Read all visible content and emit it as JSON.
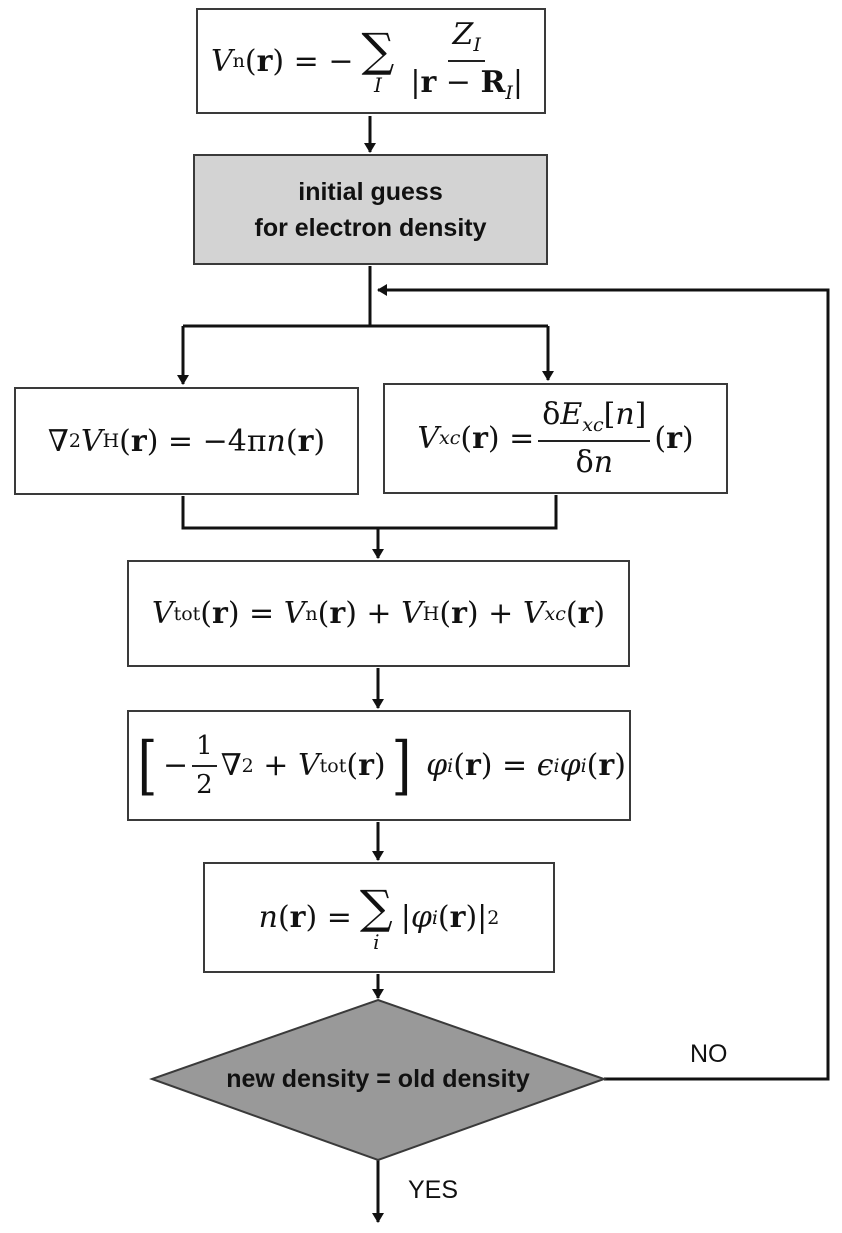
{
  "boxes": {
    "nuclear_potential": "V_n(r) = − Σ_I Z_I / |r − R_I|",
    "initial_guess": "initial guess\nfor electron density",
    "hartree": "∇²V_H(r) = −4πn(r)",
    "xc": "V_xc(r) = δE_xc[n]/δn (r)",
    "total_potential": "V_tot(r) = V_n(r) + V_H(r) + V_xc(r)",
    "kohn_sham": "[−½∇² + V_tot(r)] φ_i(r) = ε_i φ_i(r)",
    "density": "n(r) = Σ_i |φ_i(r)|²",
    "decision": "new density = old density"
  },
  "edges": {
    "no_label": "NO",
    "yes_label": "YES"
  },
  "colors": {
    "line": "#111111",
    "box_border": "#3a3a3a",
    "shaded_box": "#d3d3d3",
    "decision_fill": "#999999"
  }
}
